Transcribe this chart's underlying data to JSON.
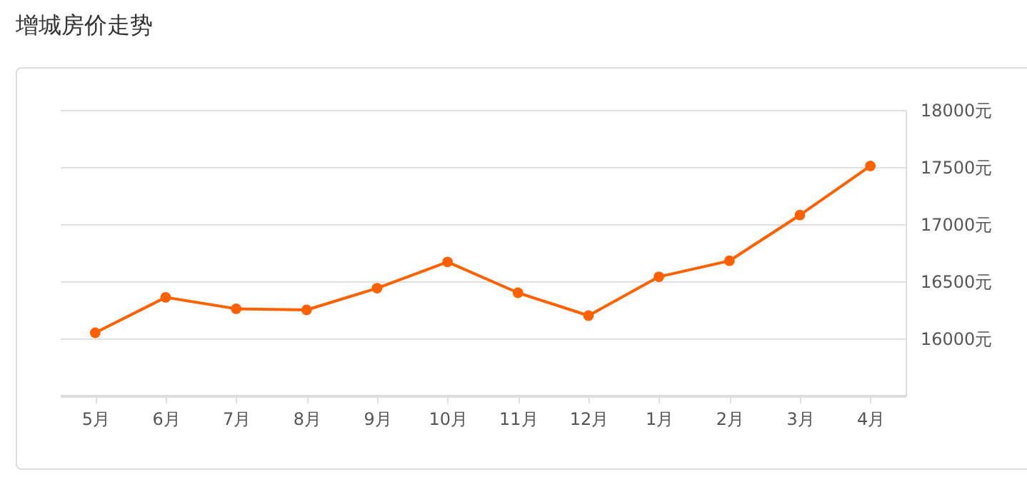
{
  "chart_data": {
    "type": "line",
    "title": "增城房价走势",
    "categories": [
      "5月",
      "6月",
      "7月",
      "8月",
      "9月",
      "10月",
      "11月",
      "12月",
      "1月",
      "2月",
      "3月",
      "4月"
    ],
    "series": [
      {
        "color": "#ff6000",
        "values": [
          16050,
          16360,
          16260,
          16250,
          16440,
          16670,
          16400,
          16200,
          16540,
          16680,
          17080,
          17510
        ]
      }
    ],
    "ylim": [
      15500,
      18000
    ],
    "yticks": [
      {
        "value": 16000,
        "label": "16000元"
      },
      {
        "value": 16500,
        "label": "16500元"
      },
      {
        "value": 17000,
        "label": "17000元"
      },
      {
        "value": 17500,
        "label": "17500元"
      },
      {
        "value": 18000,
        "label": "18000元"
      }
    ],
    "grid": "y",
    "marker": "circle"
  }
}
